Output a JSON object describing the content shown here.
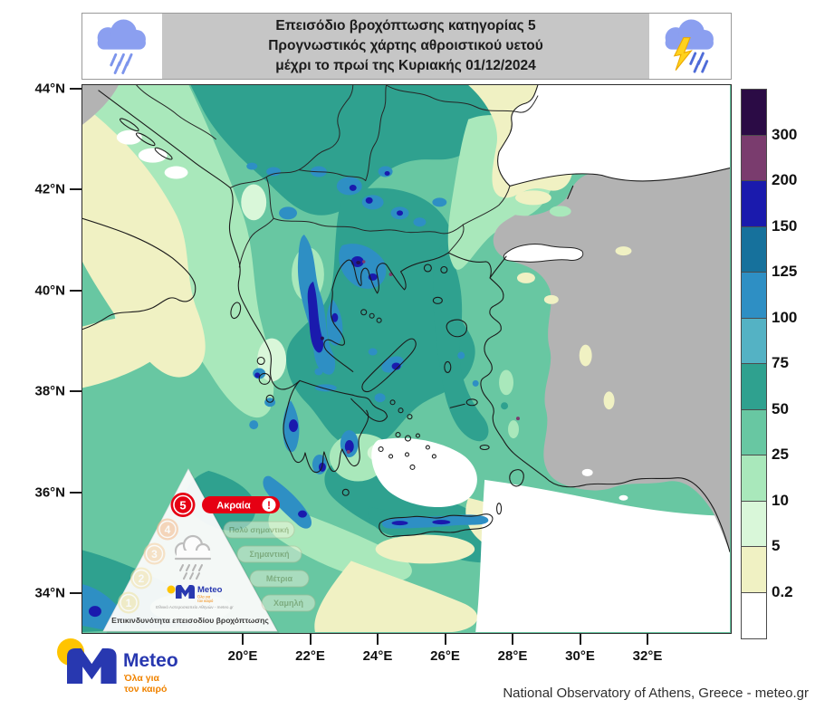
{
  "banner": {
    "line1": "Επεισόδιο βροχόπτωσης κατηγορίας 5",
    "line2": "Προγνωστικός χάρτης αθροιστικού υετού",
    "line3": "μέχρι το πρωί της Κυριακής 01/12/2024"
  },
  "axes": {
    "lat": [
      "44°N",
      "42°N",
      "40°N",
      "38°N",
      "36°N",
      "34°N"
    ],
    "lon": [
      "20°E",
      "22°E",
      "24°E",
      "26°E",
      "28°E",
      "30°E",
      "32°E"
    ]
  },
  "colorbar": {
    "labels": [
      "300",
      "200",
      "150",
      "125",
      "100",
      "75",
      "50",
      "25",
      "10",
      "5",
      "0.2"
    ],
    "colors": [
      "#2b0b45",
      "#7a3c6e",
      "#1a1aad",
      "#16719c",
      "#2e8fc4",
      "#54b2c4",
      "#2fa18f",
      "#68c7a2",
      "#a9e8bb",
      "#d9f7d9",
      "#f0f1c3",
      "#ffffff"
    ]
  },
  "pyramid": {
    "caption": "Επικινδυνότητα επεισοδίου βροχόπτωσης",
    "source": "Εθνικό Αστεροσκοπείο Αθηνών - meteo.gr",
    "alert": "!",
    "levels": [
      {
        "num": "5",
        "label": "Ακραία"
      },
      {
        "num": "4",
        "label": "Πολύ σημαντική"
      },
      {
        "num": "3",
        "label": "Σημαντική"
      },
      {
        "num": "2",
        "label": "Μέτρια"
      },
      {
        "num": "1",
        "label": "Χαμηλή"
      }
    ],
    "logo": {
      "name": "Meteo",
      "tag1": "Όλα για",
      "tag2": "τον καιρό"
    }
  },
  "logo": {
    "name": "Meteo",
    "tag1": "Όλα για",
    "tag2": "τον καιρό"
  },
  "attribution": "National Observatory of Athens, Greece - meteo.gr"
}
